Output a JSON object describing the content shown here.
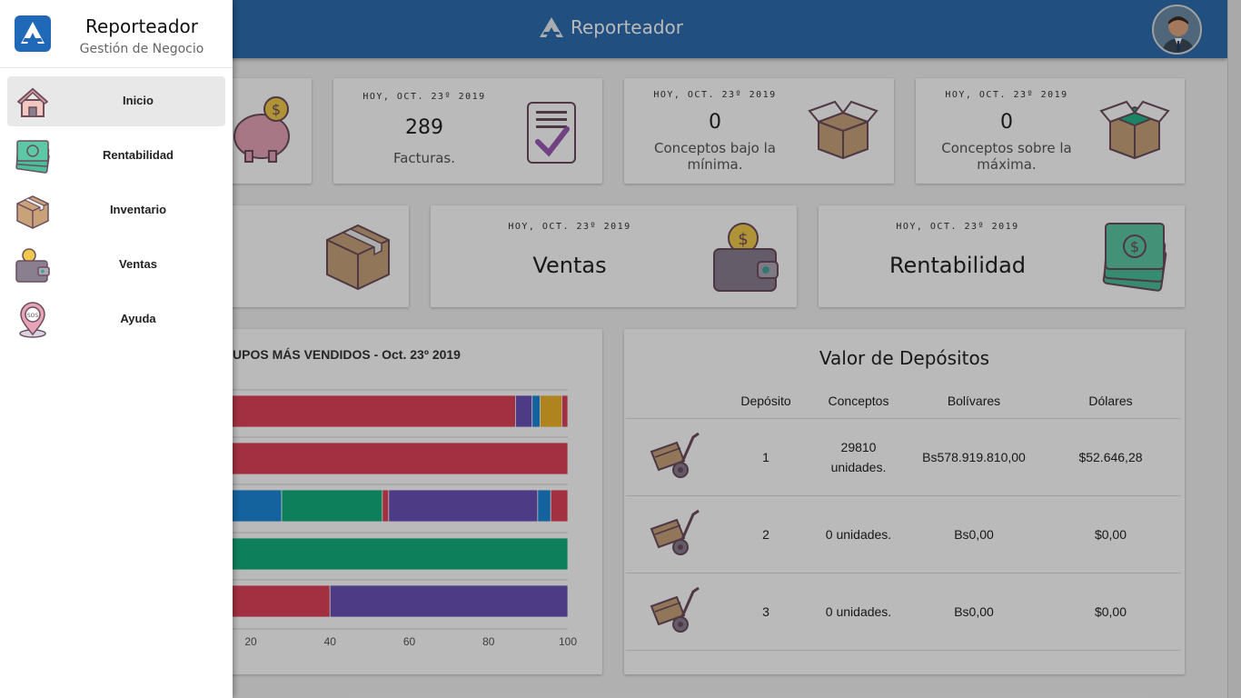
{
  "app": {
    "title": "Reporteador"
  },
  "topbar": {
    "brand": "Reporteador"
  },
  "drawer": {
    "title": "Reporteador",
    "subtitle": "Gestión de Negocio",
    "items": [
      {
        "label": "Inicio",
        "icon": "house-icon",
        "active": true
      },
      {
        "label": "Rentabilidad",
        "icon": "money-stack-icon"
      },
      {
        "label": "Inventario",
        "icon": "box-icon"
      },
      {
        "label": "Ventas",
        "icon": "wallet-icon"
      },
      {
        "label": "Ayuda",
        "icon": "sos-pin-icon"
      }
    ]
  },
  "kpis": {
    "facturas": {
      "date": "HOY, OCT. 23º 2019",
      "value": "289",
      "label": "Facturas."
    },
    "bajo_minima": {
      "date": "HOY, OCT. 23º 2019",
      "value": "0",
      "label": "Conceptos bajo la mínima."
    },
    "sobre_maxima": {
      "date": "HOY, OCT. 23º 2019",
      "value": "0",
      "label": "Conceptos sobre la máxima."
    }
  },
  "sections": {
    "ventas": {
      "date": "HOY, OCT. 23º 2019",
      "label": "Ventas"
    },
    "rentabilidad": {
      "date": "HOY, OCT. 23º 2019",
      "label": "Rentabilidad"
    }
  },
  "chart": {
    "title_visible": "UPOS MÁS VENDIDOS - Oct. 23º 2019"
  },
  "chart_data": {
    "type": "bar",
    "orientation": "horizontal",
    "stacked": true,
    "x_ticks": [
      "20",
      "40",
      "60",
      "80",
      "100"
    ],
    "xlim": [
      0,
      100
    ],
    "colors": {
      "red": "#e0435a",
      "purple": "#6b52b8",
      "blue": "#1e88d9",
      "yellow": "#f0b42a",
      "green": "#13b07d"
    },
    "rows": [
      [
        {
          "color": "red",
          "value": 86.8
        },
        {
          "color": "purple",
          "value": 4.2
        },
        {
          "color": "blue",
          "value": 2.0
        },
        {
          "color": "yellow",
          "value": 5.5
        },
        {
          "color": "red",
          "value": 1.5
        }
      ],
      [
        {
          "color": "red",
          "value": 100
        }
      ],
      [
        {
          "color": "blue",
          "value": 27.8
        },
        {
          "color": "green",
          "value": 25.4
        },
        {
          "color": "red",
          "value": 1.6
        },
        {
          "color": "purple",
          "value": 37.6
        },
        {
          "color": "blue",
          "value": 3.3
        },
        {
          "color": "red",
          "value": 4.3
        }
      ],
      [
        {
          "color": "green",
          "value": 100
        }
      ],
      [
        {
          "color": "red",
          "value": 40
        },
        {
          "color": "purple",
          "value": 60
        }
      ]
    ]
  },
  "depositos": {
    "title": "Valor de Depósitos",
    "headers": [
      "Depósito",
      "Conceptos",
      "Bolívares",
      "Dólares"
    ],
    "rows": [
      {
        "deposito": "1",
        "conceptos": "29810 unidades.",
        "bolivares": "Bs578.919.810,00",
        "dolares": "$52.646,28"
      },
      {
        "deposito": "2",
        "conceptos": "0 unidades.",
        "bolivares": "Bs0,00",
        "dolares": "$0,00"
      },
      {
        "deposito": "3",
        "conceptos": "0 unidades.",
        "bolivares": "Bs0,00",
        "dolares": "$0,00"
      }
    ]
  }
}
